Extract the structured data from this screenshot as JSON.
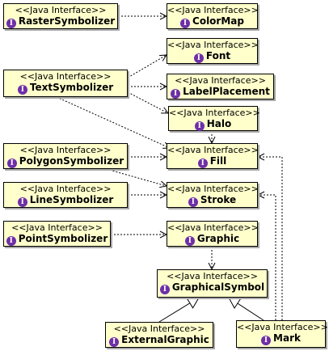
{
  "stereotype": "<<Java Interface>>",
  "interface_icon": "I",
  "classes": {
    "raster": "RasterSymbolizer",
    "colormap": "ColorMap",
    "font": "Font",
    "text": "TextSymbolizer",
    "labelplacement": "LabelPlacement",
    "halo": "Halo",
    "polygon": "PolygonSymbolizer",
    "fill": "Fill",
    "line": "LineSymbolizer",
    "stroke": "Stroke",
    "point": "PointSymbolizer",
    "graphic": "Graphic",
    "graphicalsymbol": "GraphicalSymbol",
    "externalgraphic": "ExternalGraphic",
    "mark": "Mark"
  },
  "colors": {
    "box_fill": "#ffffcc",
    "interface_icon": "#6e2fa8"
  }
}
